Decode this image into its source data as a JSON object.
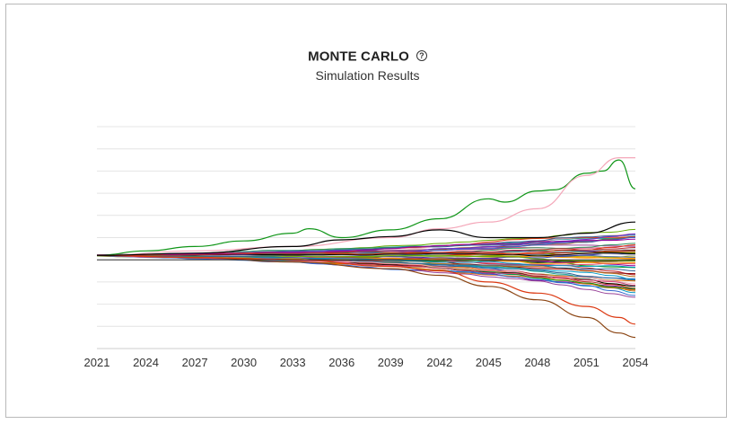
{
  "chart_data": {
    "type": "line",
    "title": "MONTE CARLO",
    "subtitle": "Simulation Results",
    "help_icon": "question-circle-icon",
    "x_ticks": [
      "2021",
      "2024",
      "2027",
      "2030",
      "2033",
      "2036",
      "2039",
      "2042",
      "2045",
      "2048",
      "2051",
      "2054"
    ],
    "x_range": [
      2021,
      2054
    ],
    "y_axis_labels_shown": false,
    "ylim": [
      -4,
      6
    ],
    "grid": true,
    "gridlines": 10,
    "baseline": 0,
    "series_count": 60,
    "colors": [
      "#109618",
      "#f4a7b9",
      "#000000",
      "#dc3912",
      "#3366cc",
      "#ff9900",
      "#990099",
      "#0099c6",
      "#dd4477",
      "#66aa00",
      "#b82e2e",
      "#316395",
      "#994499",
      "#22aa99",
      "#aaaa11",
      "#6633cc",
      "#e67300",
      "#8b0707",
      "#329262",
      "#5574a6",
      "#3b3eac",
      "#b77322",
      "#9c5b2d",
      "#cccccc"
    ],
    "highlight_series": [
      {
        "color": "#109618",
        "x": [
          2021,
          2024,
          2027,
          2030,
          2033,
          2034,
          2036,
          2039,
          2042,
          2045,
          2046,
          2048,
          2049,
          2051,
          2052,
          2053,
          2054
        ],
        "values": [
          0.2,
          0.4,
          0.6,
          0.85,
          1.2,
          1.4,
          1.0,
          1.35,
          1.85,
          2.75,
          2.6,
          3.1,
          3.15,
          3.9,
          4.0,
          4.5,
          3.2
        ]
      },
      {
        "color": "#f4a7b9",
        "x": [
          2021,
          2027,
          2033,
          2039,
          2042,
          2045,
          2048,
          2051,
          2053,
          2054
        ],
        "values": [
          0.2,
          0.4,
          0.6,
          1.0,
          1.4,
          1.7,
          2.3,
          3.8,
          4.6,
          4.6
        ]
      },
      {
        "color": "#8b4513",
        "x": [
          2021,
          2027,
          2033,
          2039,
          2042,
          2045,
          2048,
          2051,
          2053,
          2054
        ],
        "values": [
          0.2,
          0.1,
          -0.1,
          -0.4,
          -0.7,
          -1.2,
          -1.8,
          -2.6,
          -3.3,
          -3.5
        ]
      },
      {
        "color": "#dc3912",
        "x": [
          2021,
          2027,
          2033,
          2039,
          2042,
          2045,
          2048,
          2051,
          2053,
          2054
        ],
        "values": [
          0.2,
          0.1,
          0.0,
          -0.3,
          -0.5,
          -1.0,
          -1.5,
          -2.1,
          -2.6,
          -2.9
        ]
      },
      {
        "color": "#000000",
        "x": [
          2021,
          2027,
          2033,
          2036,
          2039,
          2042,
          2045,
          2048,
          2051,
          2054
        ],
        "values": [
          0.2,
          0.3,
          0.6,
          0.9,
          1.05,
          1.35,
          1.0,
          1.0,
          1.2,
          1.7
        ]
      }
    ]
  }
}
